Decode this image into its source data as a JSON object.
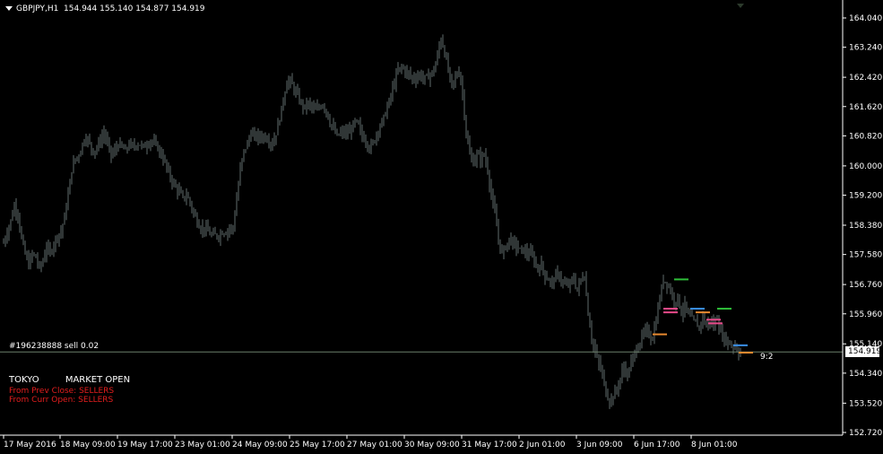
{
  "header": {
    "symbol": "GBPJPY,H1",
    "ohlc": "154.944 155.140 154.877 154.919"
  },
  "order_label": "#196238888 sell 0.02",
  "session": {
    "name": "TOKYO",
    "status": "MARKET OPEN",
    "lines": [
      "From Prev Close: SELLERS",
      "From Curr Open: SELLERS"
    ]
  },
  "ratio_label": "9:2",
  "current_price": "154.919",
  "colors": {
    "background": "#000000",
    "candles": "#5f6b6b",
    "grid_axis": "#ffffff",
    "price_line": "#6b7f6b",
    "sellers_text": "#e41e1e",
    "level_green": "#2fbf3a",
    "level_blue": "#3a8fe8",
    "level_pink": "#e84a8a",
    "level_orange": "#e8892f"
  },
  "chart_data": {
    "type": "candlestick",
    "symbol": "GBPJPY",
    "timeframe": "H1",
    "y_ticks": [
      "164.040",
      "163.240",
      "162.420",
      "161.620",
      "160.820",
      "160.000",
      "159.200",
      "158.380",
      "157.580",
      "156.760",
      "155.960",
      "155.140",
      "154.340",
      "153.520",
      "152.720"
    ],
    "ylim": [
      152.72,
      164.04
    ],
    "x_ticks": [
      "17 May 2016",
      "18 May 09:00",
      "19 May 17:00",
      "23 May 01:00",
      "24 May 09:00",
      "25 May 17:00",
      "27 May 01:00",
      "30 May 09:00",
      "31 May 17:00",
      "2 Jun 01:00",
      "3 Jun 09:00",
      "6 Jun 17:00",
      "8 Jun 01:00"
    ],
    "close_path": [
      [
        0,
        157.4
      ],
      [
        4,
        157.9
      ],
      [
        8,
        158.2
      ],
      [
        12,
        158.5
      ],
      [
        16,
        158.9
      ],
      [
        20,
        158.7
      ],
      [
        24,
        158.0
      ],
      [
        28,
        157.6
      ],
      [
        32,
        157.3
      ],
      [
        36,
        157.6
      ],
      [
        40,
        157.5
      ],
      [
        44,
        157.2
      ],
      [
        48,
        157.4
      ],
      [
        52,
        157.8
      ],
      [
        56,
        157.6
      ],
      [
        60,
        157.9
      ],
      [
        64,
        158.1
      ],
      [
        68,
        158.2
      ],
      [
        72,
        158.6
      ],
      [
        76,
        159.2
      ],
      [
        80,
        159.9
      ],
      [
        84,
        160.2
      ],
      [
        88,
        160.3
      ],
      [
        92,
        160.6
      ],
      [
        96,
        160.8
      ],
      [
        100,
        160.6
      ],
      [
        104,
        160.4
      ],
      [
        108,
        160.5
      ],
      [
        112,
        160.7
      ],
      [
        116,
        160.9
      ],
      [
        120,
        160.6
      ],
      [
        124,
        160.3
      ],
      [
        128,
        160.4
      ],
      [
        132,
        160.6
      ],
      [
        136,
        160.5
      ],
      [
        140,
        160.4
      ],
      [
        144,
        160.6
      ],
      [
        148,
        160.5
      ],
      [
        152,
        160.6
      ],
      [
        156,
        160.6
      ],
      [
        160,
        160.5
      ],
      [
        164,
        160.6
      ],
      [
        168,
        160.7
      ],
      [
        172,
        160.6
      ],
      [
        176,
        160.5
      ],
      [
        180,
        160.3
      ],
      [
        184,
        160.1
      ],
      [
        188,
        159.8
      ],
      [
        192,
        159.6
      ],
      [
        196,
        159.4
      ],
      [
        200,
        159.3
      ],
      [
        204,
        159.1
      ],
      [
        208,
        159.2
      ],
      [
        212,
        159.0
      ],
      [
        216,
        158.7
      ],
      [
        220,
        158.5
      ],
      [
        224,
        158.3
      ],
      [
        228,
        158.3
      ],
      [
        232,
        158.2
      ],
      [
        236,
        158.1
      ],
      [
        240,
        158.1
      ],
      [
        244,
        158.1
      ],
      [
        248,
        158.2
      ],
      [
        252,
        158.2
      ],
      [
        256,
        158.3
      ],
      [
        260,
        158.3
      ],
      [
        264,
        159.1
      ],
      [
        268,
        159.9
      ],
      [
        272,
        160.4
      ],
      [
        276,
        160.6
      ],
      [
        280,
        160.9
      ],
      [
        284,
        160.8
      ],
      [
        288,
        160.8
      ],
      [
        292,
        160.8
      ],
      [
        296,
        160.8
      ],
      [
        300,
        160.7
      ],
      [
        304,
        160.6
      ],
      [
        308,
        160.9
      ],
      [
        312,
        161.3
      ],
      [
        316,
        161.8
      ],
      [
        320,
        162.3
      ],
      [
        324,
        162.3
      ],
      [
        328,
        162.1
      ],
      [
        332,
        161.9
      ],
      [
        336,
        161.7
      ],
      [
        340,
        161.6
      ],
      [
        344,
        161.7
      ],
      [
        348,
        161.6
      ],
      [
        352,
        161.5
      ],
      [
        356,
        161.6
      ],
      [
        360,
        161.7
      ],
      [
        364,
        161.5
      ],
      [
        368,
        161.2
      ],
      [
        372,
        161.0
      ],
      [
        376,
        160.8
      ],
      [
        380,
        160.9
      ],
      [
        384,
        160.9
      ],
      [
        388,
        160.9
      ],
      [
        392,
        161.0
      ],
      [
        396,
        161.2
      ],
      [
        400,
        161.1
      ],
      [
        404,
        160.8
      ],
      [
        408,
        160.7
      ],
      [
        412,
        160.5
      ],
      [
        416,
        160.6
      ],
      [
        420,
        160.9
      ],
      [
        424,
        161.1
      ],
      [
        428,
        161.3
      ],
      [
        432,
        161.6
      ],
      [
        436,
        161.9
      ],
      [
        440,
        162.3
      ],
      [
        444,
        162.6
      ],
      [
        448,
        162.7
      ],
      [
        452,
        162.6
      ],
      [
        456,
        162.5
      ],
      [
        460,
        162.4
      ],
      [
        464,
        162.4
      ],
      [
        468,
        162.5
      ],
      [
        472,
        162.4
      ],
      [
        476,
        162.4
      ],
      [
        480,
        162.5
      ],
      [
        484,
        162.6
      ],
      [
        488,
        163.0
      ],
      [
        492,
        163.5
      ],
      [
        496,
        163.1
      ],
      [
        500,
        162.6
      ],
      [
        504,
        162.2
      ],
      [
        508,
        162.4
      ],
      [
        512,
        162.6
      ],
      [
        516,
        162.0
      ],
      [
        520,
        160.9
      ],
      [
        524,
        160.3
      ],
      [
        528,
        160.1
      ],
      [
        532,
        160.3
      ],
      [
        536,
        160.2
      ],
      [
        540,
        160.3
      ],
      [
        544,
        159.9
      ],
      [
        548,
        159.2
      ],
      [
        552,
        158.7
      ],
      [
        556,
        158.0
      ],
      [
        560,
        157.6
      ],
      [
        564,
        157.8
      ],
      [
        568,
        158.0
      ],
      [
        572,
        157.9
      ],
      [
        576,
        157.8
      ],
      [
        580,
        157.7
      ],
      [
        584,
        157.7
      ],
      [
        588,
        157.6
      ],
      [
        592,
        157.6
      ],
      [
        596,
        157.4
      ],
      [
        600,
        157.2
      ],
      [
        604,
        157.3
      ],
      [
        608,
        157.0
      ],
      [
        612,
        156.9
      ],
      [
        616,
        156.8
      ],
      [
        620,
        157.0
      ],
      [
        624,
        157.0
      ],
      [
        628,
        156.8
      ],
      [
        632,
        156.7
      ],
      [
        636,
        156.8
      ],
      [
        640,
        156.9
      ],
      [
        644,
        156.6
      ],
      [
        648,
        156.9
      ],
      [
        652,
        157.0
      ],
      [
        656,
        156.0
      ],
      [
        660,
        155.3
      ],
      [
        664,
        154.9
      ],
      [
        668,
        154.6
      ],
      [
        672,
        154.3
      ],
      [
        676,
        153.8
      ],
      [
        680,
        153.6
      ],
      [
        684,
        153.7
      ],
      [
        688,
        153.9
      ],
      [
        692,
        154.2
      ],
      [
        696,
        154.5
      ],
      [
        700,
        154.3
      ],
      [
        704,
        154.6
      ],
      [
        708,
        154.9
      ],
      [
        712,
        155.1
      ],
      [
        716,
        155.3
      ],
      [
        720,
        155.5
      ],
      [
        724,
        155.4
      ],
      [
        728,
        155.3
      ],
      [
        732,
        155.8
      ],
      [
        736,
        156.4
      ],
      [
        740,
        156.9
      ],
      [
        744,
        156.8
      ],
      [
        748,
        156.6
      ],
      [
        752,
        156.3
      ],
      [
        756,
        156.4
      ],
      [
        760,
        156.0
      ],
      [
        764,
        156.2
      ],
      [
        768,
        155.9
      ],
      [
        772,
        155.8
      ],
      [
        776,
        155.7
      ],
      [
        780,
        155.6
      ],
      [
        784,
        155.9
      ],
      [
        788,
        155.6
      ],
      [
        792,
        155.8
      ],
      [
        796,
        155.6
      ],
      [
        800,
        155.9
      ],
      [
        804,
        155.4
      ],
      [
        808,
        155.3
      ],
      [
        812,
        155.2
      ],
      [
        816,
        155.1
      ],
      [
        820,
        155.1
      ],
      [
        824,
        154.9
      ]
    ],
    "current_price": 154.919,
    "level_marks": [
      {
        "color": "green",
        "price": 156.9,
        "x0": 752,
        "x1": 768
      },
      {
        "color": "pink",
        "price": 156.1,
        "x0": 740,
        "x1": 756
      },
      {
        "color": "pink",
        "price": 156.0,
        "x0": 740,
        "x1": 756
      },
      {
        "color": "blue",
        "price": 156.1,
        "x0": 770,
        "x1": 786
      },
      {
        "color": "orange",
        "price": 156.0,
        "x0": 776,
        "x1": 792
      },
      {
        "color": "pink",
        "price": 155.8,
        "x0": 788,
        "x1": 804
      },
      {
        "color": "pink",
        "price": 155.7,
        "x0": 790,
        "x1": 806
      },
      {
        "color": "green",
        "price": 156.1,
        "x0": 800,
        "x1": 816
      },
      {
        "color": "orange",
        "price": 155.4,
        "x0": 728,
        "x1": 744
      },
      {
        "color": "blue",
        "price": 155.1,
        "x0": 818,
        "x1": 834
      },
      {
        "color": "orange",
        "price": 154.9,
        "x0": 824,
        "x1": 840
      }
    ]
  }
}
